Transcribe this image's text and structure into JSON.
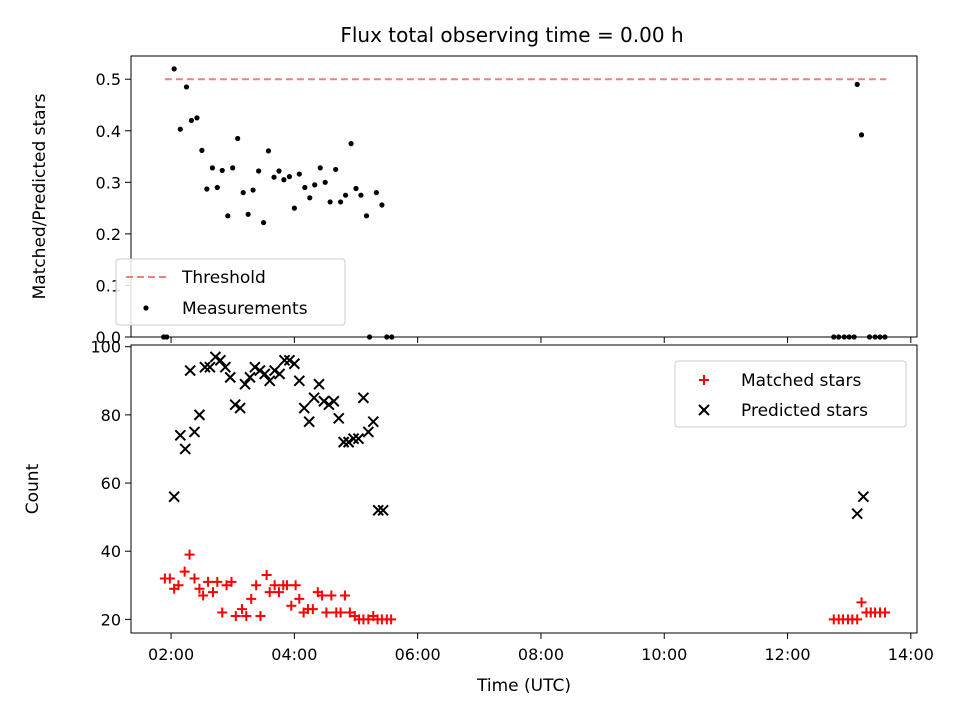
{
  "figure": {
    "title": "Flux total observing time = 0.00 h"
  },
  "chart_data": [
    {
      "type": "scatter",
      "panel": "top",
      "title": "Flux total observing time = 0.00 h",
      "xlabel": "",
      "ylabel": "Matched/Predicted stars",
      "xlim": [
        1.35,
        14.1
      ],
      "ylim": [
        0,
        0.545
      ],
      "yticks": [
        0.0,
        0.1,
        0.2,
        0.3,
        0.4,
        0.5
      ],
      "ytick_labels": [
        "0.0",
        "0.1",
        "0.2",
        "0.3",
        "0.4",
        "0.5"
      ],
      "grid": false,
      "legend": {
        "position": "lower-left",
        "entries": [
          "Threshold",
          "Measurements"
        ]
      },
      "series": [
        {
          "name": "Threshold",
          "kind": "dashed-line",
          "color": "#f08080",
          "x": [
            1.9,
            13.6
          ],
          "y": [
            0.5,
            0.5
          ]
        },
        {
          "name": "Measurements",
          "kind": "dots",
          "color": "#000000",
          "x": [
            1.88,
            1.93,
            2.05,
            2.15,
            2.25,
            2.33,
            2.42,
            2.5,
            2.58,
            2.67,
            2.75,
            2.83,
            2.92,
            3.0,
            3.08,
            3.17,
            3.25,
            3.33,
            3.42,
            3.5,
            3.58,
            3.67,
            3.75,
            3.83,
            3.92,
            4.0,
            4.08,
            4.17,
            4.25,
            4.33,
            4.42,
            4.5,
            4.58,
            4.67,
            4.75,
            4.83,
            4.92,
            5.0,
            5.08,
            5.17,
            5.22,
            5.33,
            5.42,
            5.5,
            5.58,
            12.75,
            12.83,
            12.92,
            13.0,
            13.08,
            13.13,
            13.2,
            13.33,
            13.42,
            13.5,
            13.58
          ],
          "y": [
            0.0,
            0.0,
            0.52,
            0.403,
            0.485,
            0.42,
            0.425,
            0.362,
            0.287,
            0.328,
            0.29,
            0.323,
            0.235,
            0.328,
            0.385,
            0.28,
            0.238,
            0.285,
            0.322,
            0.222,
            0.361,
            0.31,
            0.322,
            0.305,
            0.311,
            0.25,
            0.316,
            0.29,
            0.27,
            0.295,
            0.328,
            0.3,
            0.262,
            0.325,
            0.262,
            0.275,
            0.375,
            0.288,
            0.275,
            0.235,
            0.0,
            0.28,
            0.256,
            0.0,
            0.0,
            0.0,
            0.0,
            0.0,
            0.0,
            0.0,
            0.49,
            0.392,
            0.0,
            0.0,
            0.0,
            0.0
          ]
        }
      ]
    },
    {
      "type": "scatter",
      "panel": "bottom",
      "xlabel": "Time (UTC)",
      "ylabel": "Count",
      "xlim": [
        1.35,
        14.1
      ],
      "ylim": [
        16,
        100.5
      ],
      "yticks": [
        20,
        40,
        60,
        80,
        100
      ],
      "ytick_labels": [
        "20",
        "40",
        "60",
        "80",
        "100"
      ],
      "xticks": [
        2,
        4,
        6,
        8,
        10,
        12,
        14
      ],
      "xtick_labels": [
        "02:00",
        "04:00",
        "06:00",
        "08:00",
        "10:00",
        "12:00",
        "14:00"
      ],
      "grid": false,
      "legend": {
        "position": "upper-right",
        "entries": [
          "Matched stars",
          "Predicted stars"
        ]
      },
      "series": [
        {
          "name": "Matched stars",
          "kind": "plus",
          "color": "#ff0000",
          "x": [
            1.9,
            1.98,
            2.05,
            2.12,
            2.22,
            2.3,
            2.38,
            2.46,
            2.52,
            2.6,
            2.68,
            2.75,
            2.83,
            2.9,
            2.98,
            3.05,
            3.15,
            3.22,
            3.3,
            3.38,
            3.45,
            3.55,
            3.6,
            3.68,
            3.75,
            3.82,
            3.88,
            3.95,
            4.02,
            4.08,
            4.15,
            4.22,
            4.3,
            4.38,
            4.45,
            4.52,
            4.6,
            4.68,
            4.75,
            4.82,
            4.9,
            4.98,
            5.05,
            5.12,
            5.2,
            5.28,
            5.35,
            5.42,
            5.5,
            5.57,
            12.75,
            12.83,
            12.9,
            12.98,
            13.05,
            13.13,
            13.2,
            13.28,
            13.35,
            13.42,
            13.5,
            13.58
          ],
          "y": [
            32,
            32,
            29,
            30,
            34,
            39,
            32,
            29,
            27,
            31,
            28,
            31,
            22,
            30,
            31,
            21,
            23,
            21,
            26,
            30,
            21,
            33,
            28,
            30,
            28,
            30,
            30,
            24,
            30,
            26,
            22,
            23,
            23,
            28,
            27,
            22,
            27,
            22,
            22,
            27,
            22,
            21,
            20,
            20,
            20,
            21,
            20,
            20,
            20,
            20,
            20,
            20,
            20,
            20,
            20,
            20,
            25,
            22,
            22,
            22,
            22,
            22
          ]
        },
        {
          "name": "Predicted stars",
          "kind": "x",
          "color": "#000000",
          "x": [
            2.05,
            2.15,
            2.23,
            2.31,
            2.38,
            2.46,
            2.55,
            2.63,
            2.72,
            2.8,
            2.88,
            2.96,
            3.04,
            3.12,
            3.2,
            3.28,
            3.36,
            3.44,
            3.52,
            3.6,
            3.68,
            3.76,
            3.84,
            3.92,
            4.0,
            4.08,
            4.16,
            4.24,
            4.32,
            4.4,
            4.48,
            4.56,
            4.64,
            4.72,
            4.8,
            4.88,
            4.96,
            5.04,
            5.12,
            5.2,
            5.28,
            5.36,
            5.44,
            13.13,
            13.23
          ],
          "y": [
            56,
            74,
            70,
            93,
            75,
            80,
            94,
            94,
            97,
            96,
            94,
            91,
            83,
            82,
            89,
            91,
            94,
            93,
            92,
            90,
            93,
            92,
            96,
            96,
            95,
            90,
            82,
            78,
            85,
            89,
            84,
            83,
            84,
            79,
            72,
            72,
            73,
            73,
            85,
            75,
            78,
            52,
            52,
            51,
            56
          ]
        }
      ]
    }
  ]
}
